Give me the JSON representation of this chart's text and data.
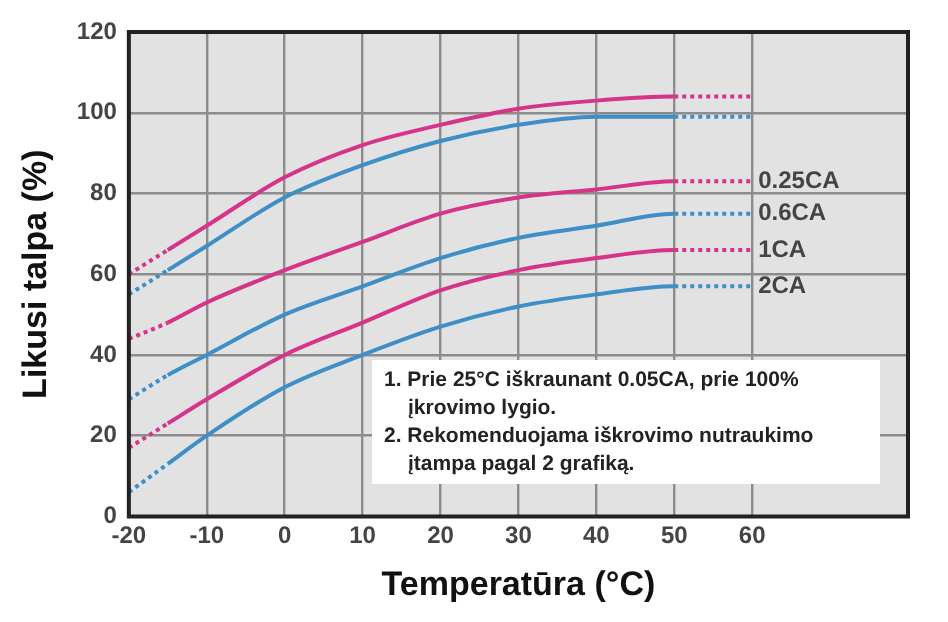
{
  "chart_data": {
    "type": "line",
    "xlabel": "Temperatūra (°C)",
    "ylabel": "Likusi talpa (%)",
    "x": [
      -20,
      -15,
      -10,
      0,
      10,
      20,
      30,
      40,
      50,
      60
    ],
    "series": [
      {
        "color": "#d6338a",
        "values": [
          60,
          66,
          72,
          84,
          92,
          97,
          101,
          103,
          104,
          104
        ]
      },
      {
        "color": "#3d8fc6",
        "values": [
          55,
          61,
          67,
          79,
          87,
          93,
          97,
          99,
          99,
          99
        ]
      },
      {
        "name": "0.25CA",
        "color": "#d6338a",
        "values": [
          44,
          48,
          53,
          61,
          68,
          75,
          79,
          81,
          83,
          83
        ]
      },
      {
        "name": "0.6CA",
        "color": "#3d8fc6",
        "values": [
          29,
          35,
          40,
          50,
          57,
          64,
          69,
          72,
          75,
          75
        ]
      },
      {
        "name": "1CA",
        "color": "#d6338a",
        "values": [
          17,
          23,
          29,
          40,
          48,
          56,
          61,
          64,
          66,
          66
        ]
      },
      {
        "name": "2CA",
        "color": "#3d8fc6",
        "values": [
          6,
          13,
          20,
          32,
          40,
          47,
          52,
          55,
          57,
          57
        ]
      }
    ],
    "xlim": [
      -20,
      80
    ],
    "xticks": [
      -20,
      -10,
      0,
      10,
      20,
      30,
      40,
      50,
      60
    ],
    "ylim": [
      0,
      120
    ],
    "yticks": [
      0,
      20,
      40,
      60,
      80,
      100,
      120
    ],
    "grid": true,
    "legend": false,
    "marker": "none",
    "annotations": [
      "1. Prie 25°C iškraunant 0.05CA, prie 100% įkrovimo lygio.",
      "2. Rekomenduojama iškrovimo nutraukimo įtampa pagal 2 grafiką."
    ]
  }
}
